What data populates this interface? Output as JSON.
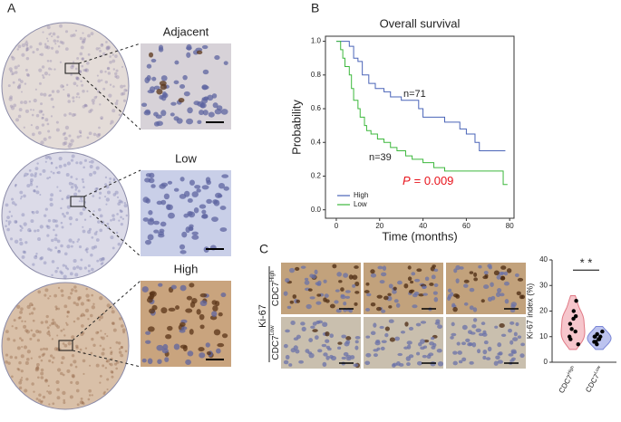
{
  "panels": {
    "a": "A",
    "b": "B",
    "c": "C"
  },
  "panel_a": {
    "labels": [
      "Adjacent",
      "Low",
      "High"
    ]
  },
  "panel_c": {
    "stain": "Ki-67",
    "rows": [
      {
        "base": "CDC7",
        "sup": "High"
      },
      {
        "base": "CDC7",
        "sup": "Low"
      }
    ]
  },
  "chart_data": [
    {
      "type": "km",
      "title": "Overall survival",
      "x_label": "Time (months)",
      "y_label": "Probability",
      "xlim": [
        -5,
        82
      ],
      "ylim": [
        -0.05,
        1.03
      ],
      "xticks": [
        0,
        20,
        40,
        60,
        80
      ],
      "yticks": [
        {
          "value": 0,
          "label": "0.0"
        },
        0.2,
        0.4,
        0.6,
        0.8,
        {
          "value": 1,
          "label": "1.0"
        }
      ],
      "legend": "lower left",
      "annotations": [
        "n=71",
        "n=39"
      ],
      "p_value": {
        "symbol": "P",
        "text": "= 0.009",
        "color": "#e8141c"
      },
      "series": [
        {
          "name": "High",
          "color": "#4a64b8",
          "x": [
            0,
            6,
            8,
            10,
            12,
            15,
            18,
            22,
            25,
            30,
            38,
            40,
            50,
            57,
            60,
            64,
            66,
            78
          ],
          "values": [
            1,
            0.97,
            0.9,
            0.88,
            0.8,
            0.75,
            0.72,
            0.7,
            0.67,
            0.65,
            0.6,
            0.55,
            0.52,
            0.48,
            0.45,
            0.4,
            0.35,
            0.35
          ]
        },
        {
          "name": "Low",
          "color": "#3cb83c",
          "x": [
            0,
            2,
            3,
            4,
            6,
            7,
            8,
            10,
            11,
            13,
            14,
            16,
            19,
            22,
            25,
            28,
            32,
            35,
            40,
            45,
            50,
            77,
            79
          ],
          "values": [
            1,
            0.95,
            0.9,
            0.85,
            0.8,
            0.72,
            0.65,
            0.6,
            0.55,
            0.5,
            0.47,
            0.45,
            0.42,
            0.4,
            0.37,
            0.35,
            0.32,
            0.3,
            0.28,
            0.25,
            0.23,
            0.15,
            0.15
          ]
        }
      ]
    },
    {
      "type": "violin",
      "y_label": "Ki-67 index (%)",
      "significance": "* *",
      "ylim": [
        0,
        40
      ],
      "yticks": [
        0,
        10,
        20,
        30,
        40
      ],
      "categories": [
        {
          "base": "CDC7",
          "sup": "High"
        },
        {
          "base": "CDC7",
          "sup": "Low"
        }
      ],
      "colors": [
        "#f6c6cc",
        "#bcc3ef"
      ],
      "edge_colors": [
        "#e07a86",
        "#7a86d6"
      ],
      "values": [
        [
          24,
          20,
          18,
          17,
          15,
          13,
          12,
          10,
          9,
          7
        ],
        [
          12,
          11,
          10,
          10,
          9,
          9,
          8,
          8,
          7,
          10
        ]
      ]
    }
  ]
}
